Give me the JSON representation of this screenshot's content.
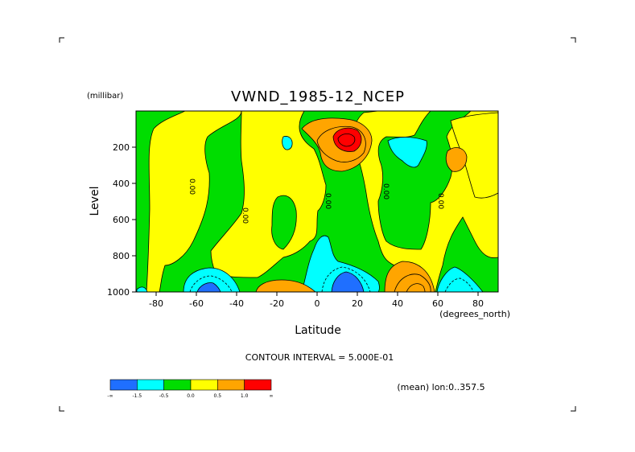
{
  "chart_data": {
    "type": "heatmap",
    "title": "VWND_1985-12_NCEP",
    "xlabel": "Latitude",
    "ylabel": "Level",
    "x_units": "(degrees_north)",
    "y_units": "(millibar)",
    "xlim": [
      -90,
      90
    ],
    "ylim": [
      1000,
      0
    ],
    "x_ticks": [
      -80,
      -60,
      -40,
      -20,
      0,
      20,
      40,
      60,
      80
    ],
    "y_ticks": [
      200,
      400,
      600,
      800,
      1000
    ],
    "contour_interval_text": "CONTOUR INTERVAL = 5.000E-01",
    "annotation": "(mean) lon:0..357.5",
    "contour_labels": [
      "0.00",
      "0.00",
      "0.00",
      "0.00",
      "0.00"
    ],
    "legend": {
      "colors": [
        "#1f6fff",
        "#00ffff",
        "#00dd00",
        "#ffff00",
        "#ffa500",
        "#ff0000"
      ],
      "labels": [
        "-∞",
        "-1.5",
        "-0.5",
        "0.0",
        "0.5",
        "1.0",
        "∞"
      ]
    }
  }
}
